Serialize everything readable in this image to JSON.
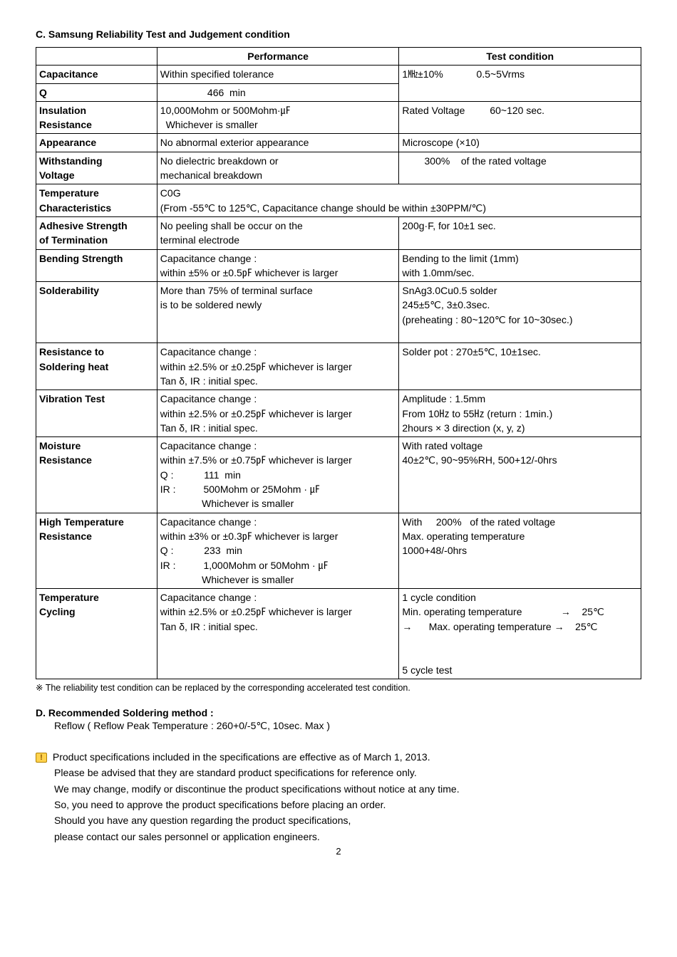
{
  "section_c": {
    "title": "C. Samsung Reliability Test and Judgement condition",
    "headers": {
      "param": "",
      "performance": "Performance",
      "test": "Test condition"
    },
    "rows": [
      {
        "param": [
          "Capacitance"
        ],
        "perf": [
          "Within specified tolerance"
        ],
        "test": [
          "1㎒±10%            0.5~5Vrms"
        ]
      },
      {
        "param": [
          "Q"
        ],
        "perf": [
          "                 466  min"
        ],
        "test": null
      },
      {
        "param": [
          "Insulation",
          "Resistance"
        ],
        "perf": [
          "10,000Mohm or 500Mohm·㎌",
          "  Whichever is smaller"
        ],
        "test": [
          "Rated Voltage         60~120 sec."
        ]
      },
      {
        "param": [
          "Appearance"
        ],
        "perf": [
          "No abnormal exterior appearance"
        ],
        "test": [
          "Microscope (×10)"
        ]
      },
      {
        "param": [
          "Withstanding",
          "Voltage"
        ],
        "perf": [
          "No dielectric breakdown or",
          "mechanical breakdown"
        ],
        "test": [
          "        300%    of the rated voltage"
        ]
      },
      {
        "param": [
          "Temperature",
          "Characteristics"
        ],
        "perf_span": [
          "C0G",
          "(From -55℃ to 125℃, Capacitance change should be within ±30PPM/℃)"
        ]
      },
      {
        "param": [
          "Adhesive Strength",
          "of Termination"
        ],
        "perf": [
          "No peeling shall be occur on the",
          "terminal electrode"
        ],
        "test": [
          "200g·F, for 10±1 sec."
        ]
      },
      {
        "param": [
          "Bending Strength",
          ""
        ],
        "perf": [
          "Capacitance change :",
          "within ±5% or ±0.5㎊ whichever is larger"
        ],
        "test": [
          "Bending to the limit (1mm)",
          " with 1.0mm/sec."
        ]
      },
      {
        "param": [
          "Solderability",
          "",
          "",
          ""
        ],
        "perf": [
          "More than 75% of terminal surface",
          "is to be soldered newly",
          "",
          ""
        ],
        "test": [
          "SnAg3.0Cu0.5 solder",
          "245±5℃, 3±0.3sec.",
          "(preheating : 80~120℃ for 10~30sec.)",
          ""
        ]
      },
      {
        "param": [
          "Resistance to",
          "Soldering heat",
          ""
        ],
        "perf": [
          "Capacitance change :",
          "within ±2.5% or ±0.25㎊ whichever is larger",
          "Tan δ, IR : initial spec."
        ],
        "test": [
          "Solder pot : 270±5℃, 10±1sec.",
          "",
          ""
        ]
      },
      {
        "param": [
          "Vibration Test",
          "",
          ""
        ],
        "perf": [
          "Capacitance change :",
          "within ±2.5% or ±0.25㎊ whichever is larger",
          "Tan δ, IR : initial spec."
        ],
        "test": [
          "Amplitude : 1.5mm",
          "From 10㎐ to 55㎐ (return : 1min.)",
          "2hours × 3 direction (x, y, z)"
        ]
      },
      {
        "param": [
          "Moisture",
          "Resistance",
          "",
          "",
          ""
        ],
        "perf": [
          "Capacitance change :",
          "within ±7.5% or ±0.75㎊ whichever is larger",
          "Q :           111  min",
          "IR :          500Mohm or 25Mohm · ㎌",
          "               Whichever is smaller"
        ],
        "test": [
          "With rated voltage",
          "40±2℃, 90~95%RH, 500+12/-0hrs",
          "",
          "",
          ""
        ]
      },
      {
        "param": [
          "High Temperature",
          "Resistance",
          "",
          "",
          ""
        ],
        "perf": [
          "Capacitance change :",
          "within ±3% or ±0.3㎊ whichever is larger",
          "Q :           233  min",
          "IR :          1,000Mohm or 50Mohm · ㎌",
          "               Whichever is smaller"
        ],
        "test": [
          "With     200%   of the rated voltage",
          "Max. operating temperature",
          "1000+48/-0hrs",
          "",
          ""
        ]
      },
      {
        "param": [
          "Temperature",
          "Cycling",
          "",
          "",
          "",
          ""
        ],
        "perf": [
          "Capacitance change :",
          "within ±2.5% or ±0.25㎊ whichever is larger",
          "Tan δ, IR : initial spec.",
          "",
          "",
          ""
        ],
        "test": [
          "1 cycle condition",
          "Min. operating temperature              →    25℃",
          "→      Max. operating temperature →    25℃",
          "",
          "",
          "5 cycle test"
        ]
      }
    ],
    "footnote": "※ The reliability test condition can be replaced by the corresponding accelerated test condition."
  },
  "section_d": {
    "title": "D. Recommended Soldering method :",
    "sub": "Reflow ( Reflow Peak Temperature : 260+0/-5℃, 10sec. Max )"
  },
  "notice": {
    "lines": [
      "Product specifications included in the specifications are effective as of March 1, 2013.",
      "Please be advised that they are standard product specifications for reference only.",
      "We may change, modify or discontinue the product specifications without notice at any time.",
      "So, you need to approve the product specifications before placing an order.",
      "Should you have any question regarding the product specifications,",
      "please contact our sales personnel or application engineers."
    ]
  },
  "page_number": "2",
  "warn_glyph": "!"
}
